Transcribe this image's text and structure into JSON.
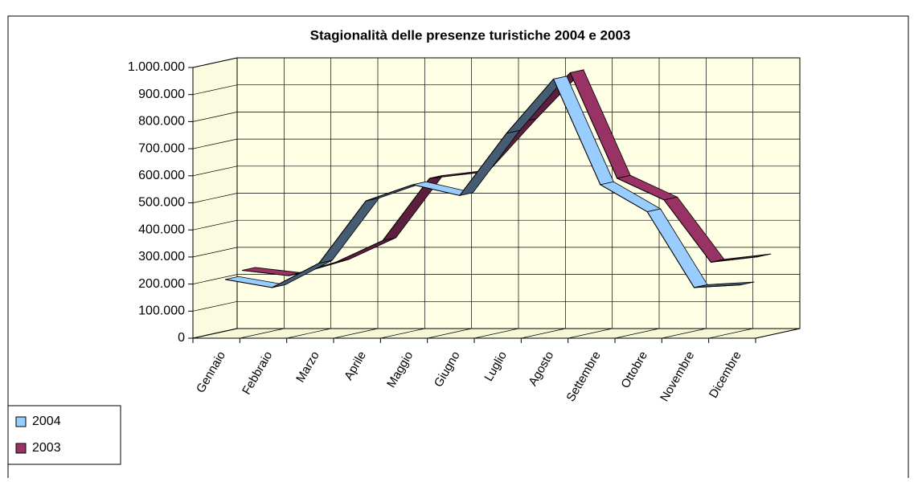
{
  "chart_data": {
    "type": "line3d",
    "title": "Stagionalità delle presenze turistiche 2004 e 2003",
    "categories": [
      "Gennaio",
      "Febbraio",
      "Marzo",
      "Aprile",
      "Maggio",
      "Giugno",
      "Luglio",
      "Agosto",
      "Settembre",
      "Ottobre",
      "Novembre",
      "Dicembre"
    ],
    "series": [
      {
        "name": "2004",
        "color": "#99ccff",
        "values": [
          210000,
          180000,
          270000,
          500000,
          560000,
          520000,
          750000,
          950000,
          560000,
          460000,
          180000,
          190000
        ]
      },
      {
        "name": "2003",
        "color": "#993366",
        "values": [
          230000,
          210000,
          260000,
          340000,
          570000,
          590000,
          780000,
          960000,
          570000,
          490000,
          260000,
          280000
        ]
      }
    ],
    "ylim": [
      0,
      1000000
    ],
    "yticks": [
      0,
      {
        "value": 100000,
        "label": "100.000"
      },
      {
        "value": 200000,
        "label": "200.000"
      },
      {
        "value": 300000,
        "label": "300.000"
      },
      {
        "value": 400000,
        "label": "400.000"
      },
      {
        "value": 500000,
        "label": "500.000"
      },
      {
        "value": 600000,
        "label": "600.000"
      },
      {
        "value": 700000,
        "label": "700.000"
      },
      {
        "value": 800000,
        "label": "800.000"
      },
      {
        "value": 900000,
        "label": "900.000"
      },
      {
        "value": 1000000,
        "label": "1.000.000"
      }
    ],
    "grid": true,
    "legend": "bottom-left"
  }
}
